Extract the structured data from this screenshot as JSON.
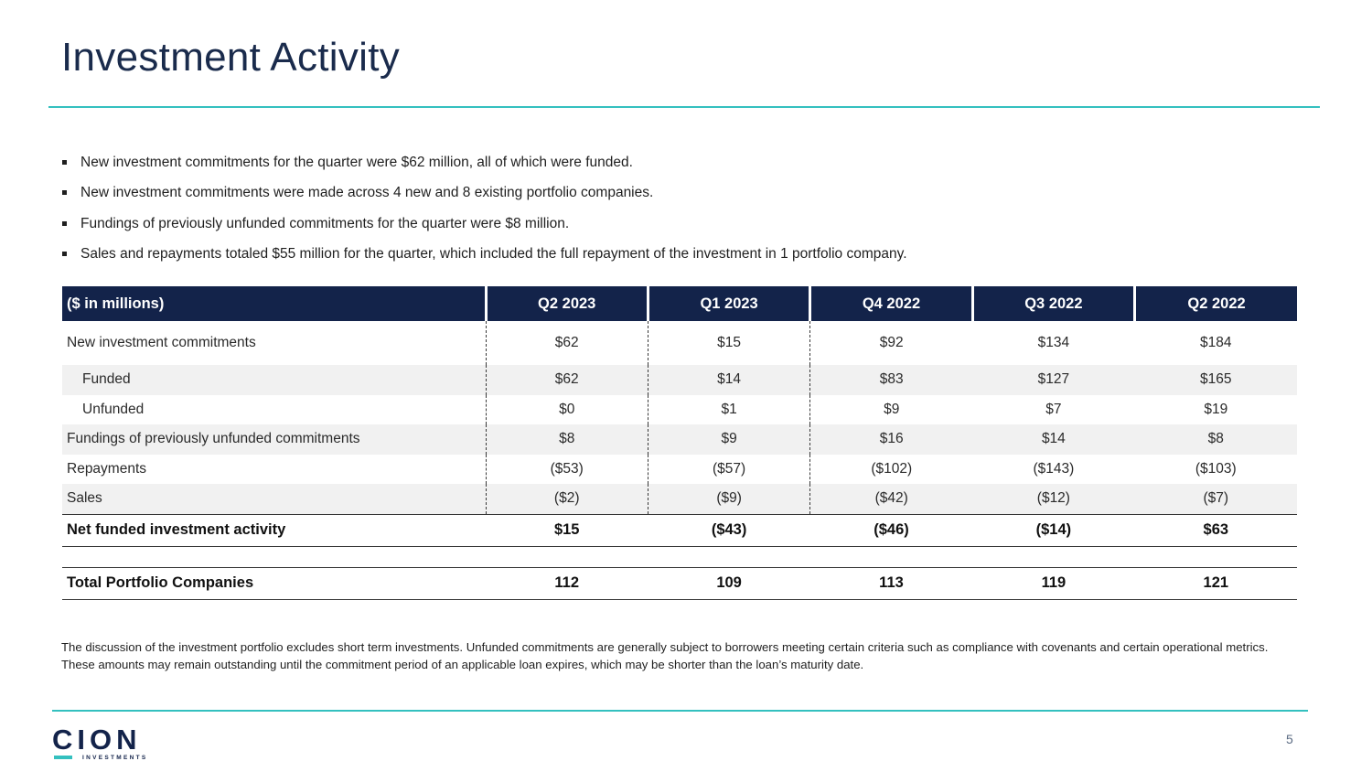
{
  "slide": {
    "title": "Investment Activity",
    "page_number": "5"
  },
  "bullets": [
    "New investment commitments for the quarter were $62 million, all of which were funded.",
    "New investment commitments were made across 4 new and 8 existing portfolio companies.",
    "Fundings of previously unfunded commitments for the quarter were $8 million.",
    "Sales and repayments totaled $55 million for the quarter, which included the full repayment of the investment in 1 portfolio company."
  ],
  "table": {
    "header": [
      "($ in millions)",
      "Q2 2023",
      "Q1 2023",
      "Q4 2022",
      "Q3 2022",
      "Q2 2022"
    ],
    "rows": [
      [
        "New investment commitments",
        "$62",
        "$15",
        "$92",
        "$134",
        "$184"
      ],
      [
        "Funded",
        "$62",
        "$14",
        "$83",
        "$127",
        "$165"
      ],
      [
        "Unfunded",
        "$0",
        "$1",
        "$9",
        "$7",
        "$19"
      ],
      [
        "Fundings of previously unfunded commitments",
        "$8",
        "$9",
        "$16",
        "$14",
        "$8"
      ],
      [
        "Repayments",
        "($53)",
        "($57)",
        "($102)",
        "($143)",
        "($103)"
      ],
      [
        "Sales",
        "($2)",
        "($9)",
        "($42)",
        "($12)",
        "($7)"
      ]
    ],
    "net_row": [
      "Net funded investment activity",
      "$15",
      "($43)",
      "($46)",
      "($14)",
      "$63"
    ],
    "total_row": [
      "Total Portfolio Companies",
      "112",
      "109",
      "113",
      "119",
      "121"
    ]
  },
  "footnote": "The discussion of the investment portfolio excludes short term investments. Unfunded commitments are generally subject to borrowers meeting certain criteria such as compliance with covenants and certain operational metrics. These amounts may remain outstanding until the commitment period of an applicable loan expires, which may be shorter than the loan’s maturity date.",
  "logo": {
    "name": "CION",
    "tagline": "INVESTMENTS"
  },
  "colors": {
    "accent": "#34c0bf",
    "navy": "#13234a"
  }
}
